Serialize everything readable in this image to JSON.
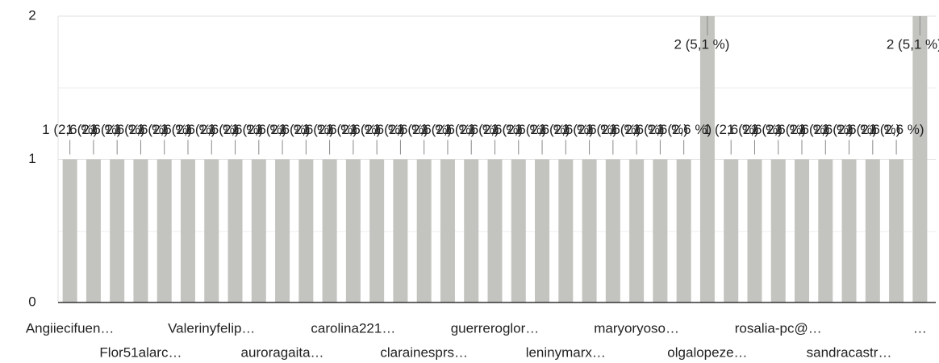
{
  "chart_data": {
    "type": "bar",
    "categories": [
      "Angiiecifuen…",
      null,
      null,
      "Flor51alarc…",
      null,
      null,
      "Valerinyfelip…",
      null,
      null,
      "auroragaita…",
      null,
      null,
      "carolina221…",
      null,
      null,
      "clarainesprs…",
      null,
      null,
      "guerreroglor…",
      null,
      null,
      "leninymarx…",
      null,
      null,
      "maryoryoso…",
      null,
      null,
      "olgalopeze…",
      null,
      null,
      "rosalia-pc@…",
      null,
      null,
      "sandracastr…",
      null,
      null,
      "…"
    ],
    "values": [
      1,
      1,
      1,
      1,
      1,
      1,
      1,
      1,
      1,
      1,
      1,
      1,
      1,
      1,
      1,
      1,
      1,
      1,
      1,
      1,
      1,
      1,
      1,
      1,
      1,
      1,
      1,
      2,
      1,
      1,
      1,
      1,
      1,
      1,
      1,
      1,
      2
    ],
    "value_labels": [
      "1 (2,6 %)",
      "1 (2,6 %)",
      "1 (2,6 %)",
      "1 (2,6 %)",
      "1 (2,6 %)",
      "1 (2,6 %)",
      "1 (2,6 %)",
      "1 (2,6 %)",
      "1 (2,6 %)",
      "1 (2,6 %)",
      "1 (2,6 %)",
      "1 (2,6 %)",
      "1 (2,6 %)",
      "1 (2,6 %)",
      "1 (2,6 %)",
      "1 (2,6 %)",
      "1 (2,6 %)",
      "1 (2,6 %)",
      "1 (2,6 %)",
      "1 (2,6 %)",
      "1 (2,6 %)",
      "1 (2,6 %)",
      "1 (2,6 %)",
      "1 (2,6 %)",
      "1 (2,6 %)",
      "1 (2,6 %)",
      "1 (2,6 %)",
      "2 (5,1 %)",
      "1 (2,6 %)",
      "1 (2,6 %)",
      "1 (2,6 %)",
      "1 (2,6 %)",
      "1 (2,6 %)",
      "1 (2,6 %)",
      "1 (2,6 %)",
      "1 (2,6 %)",
      "2 (5,1 %)"
    ],
    "color": "#c3c3bf",
    "ylim": [
      0,
      2
    ],
    "yticks": [
      0,
      1,
      2
    ],
    "grid": true
  }
}
